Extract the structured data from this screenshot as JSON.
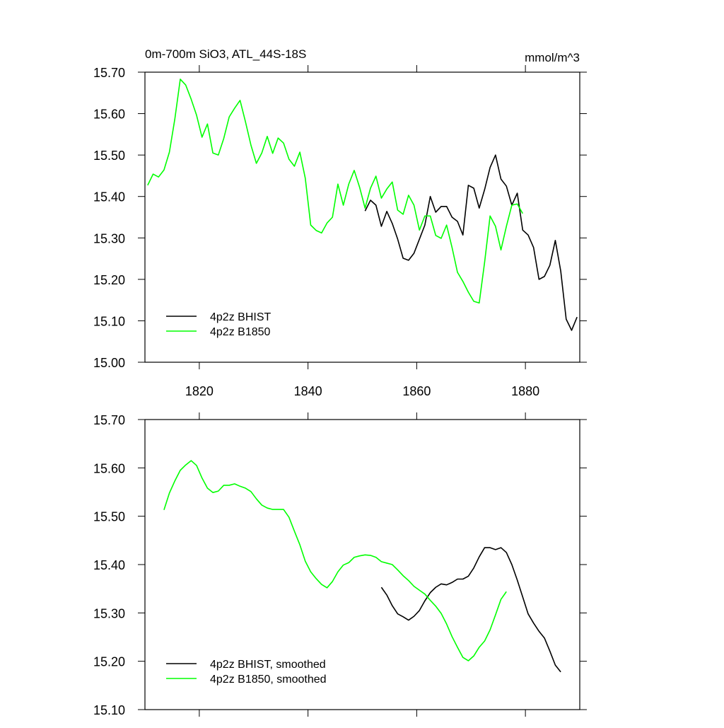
{
  "chart_data": [
    {
      "type": "line",
      "title": "0m-700m SiO3, ATL_44S-18S",
      "units": "mmol/m^3",
      "xlim": [
        1810,
        1890
      ],
      "xticks": [
        1820,
        1840,
        1860,
        1880
      ],
      "show_xtick_labels": true,
      "ylim": [
        15.0,
        15.7
      ],
      "yticks": [
        {
          "value": 15.0,
          "label": "15.00"
        },
        {
          "value": 15.1,
          "label": "15.10"
        },
        {
          "value": 15.2,
          "label": "15.20"
        },
        {
          "value": 15.3,
          "label": "15.30"
        },
        {
          "value": 15.4,
          "label": "15.40"
        },
        {
          "value": 15.5,
          "label": "15.50"
        },
        {
          "value": 15.6,
          "label": "15.60"
        },
        {
          "value": 15.7,
          "label": "15.70"
        }
      ],
      "legend": "lower left",
      "series": [
        {
          "name": "4p2z BHIST",
          "color": "#000000",
          "x": [
            1850.5,
            1851.5,
            1852.5,
            1853.5,
            1854.5,
            1855.5,
            1856.5,
            1857.5,
            1858.5,
            1859.5,
            1860.5,
            1861.5,
            1862.5,
            1863.5,
            1864.5,
            1865.5,
            1866.5,
            1867.5,
            1868.5,
            1869.5,
            1870.5,
            1871.5,
            1872.5,
            1873.5,
            1874.5,
            1875.5,
            1876.5,
            1877.5,
            1878.5,
            1879.5,
            1880.5,
            1881.5,
            1882.5,
            1883.5,
            1884.5,
            1885.5,
            1886.5,
            1887.5,
            1888.5,
            1889.5
          ],
          "values": [
            15.365,
            15.391,
            15.379,
            15.328,
            15.364,
            15.335,
            15.297,
            15.251,
            15.246,
            15.263,
            15.297,
            15.331,
            15.4,
            15.362,
            15.376,
            15.376,
            15.35,
            15.34,
            15.307,
            15.427,
            15.42,
            15.372,
            15.417,
            15.47,
            15.5,
            15.442,
            15.425,
            15.379,
            15.408,
            15.319,
            15.307,
            15.277,
            15.2,
            15.207,
            15.234,
            15.294,
            15.22,
            15.104,
            15.077,
            15.109
          ]
        },
        {
          "name": "4p2z B1850",
          "color": "#00ff00",
          "x": [
            1810.5,
            1811.5,
            1812.5,
            1813.5,
            1814.5,
            1815.5,
            1816.5,
            1817.5,
            1818.5,
            1819.5,
            1820.5,
            1821.5,
            1822.5,
            1823.5,
            1824.5,
            1825.5,
            1826.5,
            1827.5,
            1828.5,
            1829.5,
            1830.5,
            1831.5,
            1832.5,
            1833.5,
            1834.5,
            1835.5,
            1836.5,
            1837.5,
            1838.5,
            1839.5,
            1840.5,
            1841.5,
            1842.5,
            1843.5,
            1844.5,
            1845.5,
            1846.5,
            1847.5,
            1848.5,
            1849.5,
            1850.5,
            1851.5,
            1852.5,
            1853.5,
            1854.5,
            1855.5,
            1856.5,
            1857.5,
            1858.5,
            1859.5,
            1860.5,
            1861.5,
            1862.5,
            1863.5,
            1864.5,
            1865.5,
            1866.5,
            1867.5,
            1868.5,
            1869.5,
            1870.5,
            1871.5,
            1872.5,
            1873.5,
            1874.5,
            1875.5,
            1876.5,
            1877.5,
            1878.5,
            1879.5
          ],
          "values": [
            15.427,
            15.454,
            15.447,
            15.464,
            15.507,
            15.587,
            15.683,
            15.669,
            15.635,
            15.596,
            15.543,
            15.575,
            15.505,
            15.5,
            15.54,
            15.592,
            15.613,
            15.632,
            15.58,
            15.524,
            15.48,
            15.505,
            15.545,
            15.504,
            15.541,
            15.529,
            15.49,
            15.473,
            15.507,
            15.444,
            15.331,
            15.318,
            15.312,
            15.336,
            15.35,
            15.43,
            15.379,
            15.43,
            15.463,
            15.422,
            15.372,
            15.42,
            15.449,
            15.396,
            15.418,
            15.435,
            15.367,
            15.357,
            15.403,
            15.379,
            15.319,
            15.353,
            15.353,
            15.306,
            15.299,
            15.331,
            15.277,
            15.217,
            15.195,
            15.169,
            15.147,
            15.143,
            15.242,
            15.353,
            15.328,
            15.271,
            15.328,
            15.379,
            15.382,
            15.359
          ]
        }
      ]
    },
    {
      "type": "line",
      "xlim": [
        1810,
        1890
      ],
      "xticks": [
        1820,
        1840,
        1860,
        1880
      ],
      "show_xtick_labels": false,
      "ylim": [
        15.1,
        15.7
      ],
      "yticks": [
        {
          "value": 15.1,
          "label": "15.10"
        },
        {
          "value": 15.2,
          "label": "15.20"
        },
        {
          "value": 15.3,
          "label": "15.30"
        },
        {
          "value": 15.4,
          "label": "15.40"
        },
        {
          "value": 15.5,
          "label": "15.50"
        },
        {
          "value": 15.6,
          "label": "15.60"
        },
        {
          "value": 15.7,
          "label": "15.70"
        }
      ],
      "legend": "lower left",
      "series": [
        {
          "name": "4p2z BHIST, smoothed",
          "color": "#000000",
          "x": [
            1853.5,
            1854.5,
            1855.5,
            1856.5,
            1857.5,
            1858.5,
            1859.5,
            1860.5,
            1861.5,
            1862.5,
            1863.5,
            1864.5,
            1865.5,
            1866.5,
            1867.5,
            1868.5,
            1869.5,
            1870.5,
            1871.5,
            1872.5,
            1873.5,
            1874.5,
            1875.5,
            1876.5,
            1877.5,
            1878.5,
            1879.5,
            1880.5,
            1881.5,
            1882.5,
            1883.5,
            1884.5,
            1885.5,
            1886.5
          ],
          "values": [
            15.353,
            15.337,
            15.315,
            15.298,
            15.292,
            15.285,
            15.293,
            15.305,
            15.325,
            15.342,
            15.353,
            15.36,
            15.358,
            15.363,
            15.37,
            15.37,
            15.376,
            15.393,
            15.416,
            15.435,
            15.435,
            15.431,
            15.435,
            15.425,
            15.4,
            15.368,
            15.333,
            15.298,
            15.279,
            15.262,
            15.248,
            15.221,
            15.192,
            15.178
          ]
        },
        {
          "name": "4p2z B1850, smoothed",
          "color": "#00ff00",
          "x": [
            1813.5,
            1814.5,
            1815.5,
            1816.5,
            1817.5,
            1818.5,
            1819.5,
            1820.5,
            1821.5,
            1822.5,
            1823.5,
            1824.5,
            1825.5,
            1826.5,
            1827.5,
            1828.5,
            1829.5,
            1830.5,
            1831.5,
            1832.5,
            1833.5,
            1834.5,
            1835.5,
            1836.5,
            1837.5,
            1838.5,
            1839.5,
            1840.5,
            1841.5,
            1842.5,
            1843.5,
            1844.5,
            1845.5,
            1846.5,
            1847.5,
            1848.5,
            1849.5,
            1850.5,
            1851.5,
            1852.5,
            1853.5,
            1854.5,
            1855.5,
            1856.5,
            1857.5,
            1858.5,
            1859.5,
            1860.5,
            1861.5,
            1862.5,
            1863.5,
            1864.5,
            1865.5,
            1866.5,
            1867.5,
            1868.5,
            1869.5,
            1870.5,
            1871.5,
            1872.5,
            1873.5,
            1874.5,
            1875.5,
            1876.5
          ],
          "values": [
            15.513,
            15.548,
            15.573,
            15.595,
            15.606,
            15.615,
            15.605,
            15.579,
            15.558,
            15.549,
            15.552,
            15.564,
            15.564,
            15.567,
            15.562,
            15.558,
            15.551,
            15.536,
            15.523,
            15.517,
            15.514,
            15.514,
            15.514,
            15.498,
            15.469,
            15.441,
            15.407,
            15.385,
            15.371,
            15.359,
            15.352,
            15.365,
            15.385,
            15.399,
            15.404,
            15.415,
            15.418,
            15.42,
            15.419,
            15.415,
            15.406,
            15.403,
            15.4,
            15.389,
            15.377,
            15.367,
            15.355,
            15.347,
            15.339,
            15.326,
            15.314,
            15.299,
            15.277,
            15.251,
            15.229,
            15.208,
            15.201,
            15.211,
            15.229,
            15.242,
            15.265,
            15.296,
            15.328,
            15.344
          ]
        }
      ]
    }
  ]
}
